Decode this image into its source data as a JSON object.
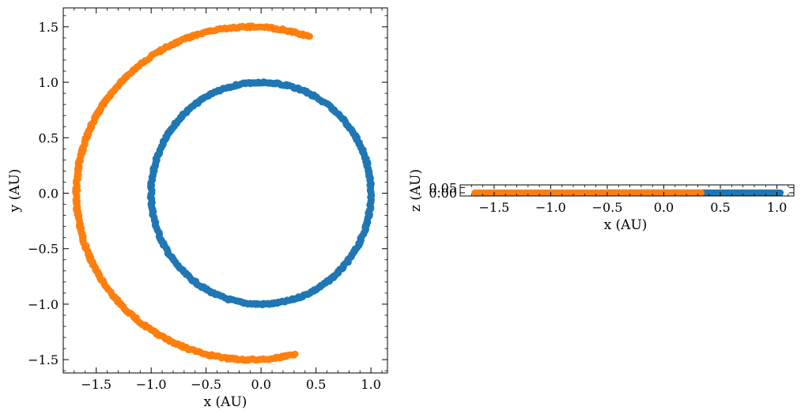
{
  "colors": {
    "series_1": "#1f77b4",
    "series_2": "#ff7f0e"
  },
  "chart_data": [
    {
      "type": "scatter",
      "panel": "left",
      "xlabel": "x (AU)",
      "ylabel": "y (AU)",
      "xlim": [
        -1.8,
        1.15
      ],
      "ylim": [
        -1.62,
        1.67
      ],
      "xticks": [
        -1.5,
        -1.0,
        -0.5,
        0.0,
        0.5,
        1.0
      ],
      "xtick_labels": [
        "−1.5",
        "−1.0",
        "−0.5",
        "0.0",
        "0.5",
        "1.0"
      ],
      "yticks": [
        -1.5,
        -1.0,
        -0.5,
        0.0,
        0.5,
        1.0,
        1.5
      ],
      "ytick_labels": [
        "−1.5",
        "−1.0",
        "−0.5",
        "0.0",
        "0.5",
        "1.0",
        "1.5"
      ],
      "grid": false,
      "series": [
        {
          "color_key": "series_1",
          "curve": "circle",
          "radius": 1.0,
          "start_deg": 0,
          "end_deg": 360
        },
        {
          "color_key": "series_2",
          "curve": "ellipse",
          "center": [
            -0.1,
            0.0
          ],
          "a": 1.58,
          "b": 1.5,
          "start_deg": 70,
          "end_deg": 285
        }
      ]
    },
    {
      "type": "scatter",
      "panel": "right",
      "xlabel": "x (AU)",
      "ylabel": "z (AU)",
      "xlim": [
        -1.8,
        1.15
      ],
      "ylim": [
        -0.03,
        0.075
      ],
      "xticks": [
        -1.5,
        -1.0,
        -0.5,
        0.0,
        0.5,
        1.0
      ],
      "xtick_labels": [
        "−1.5",
        "−1.0",
        "−0.5",
        "0.0",
        "0.5",
        "1.0"
      ],
      "yticks": [
        0.0,
        0.05
      ],
      "ytick_labels": [
        "0.00",
        "0.05"
      ],
      "grid": false,
      "series": [
        {
          "color_key": "series_1",
          "x_range": [
            -0.5,
            1.03
          ],
          "z": 0.0
        },
        {
          "color_key": "series_2",
          "x_range": [
            -1.67,
            0.33
          ],
          "z": 0.0
        }
      ]
    }
  ]
}
